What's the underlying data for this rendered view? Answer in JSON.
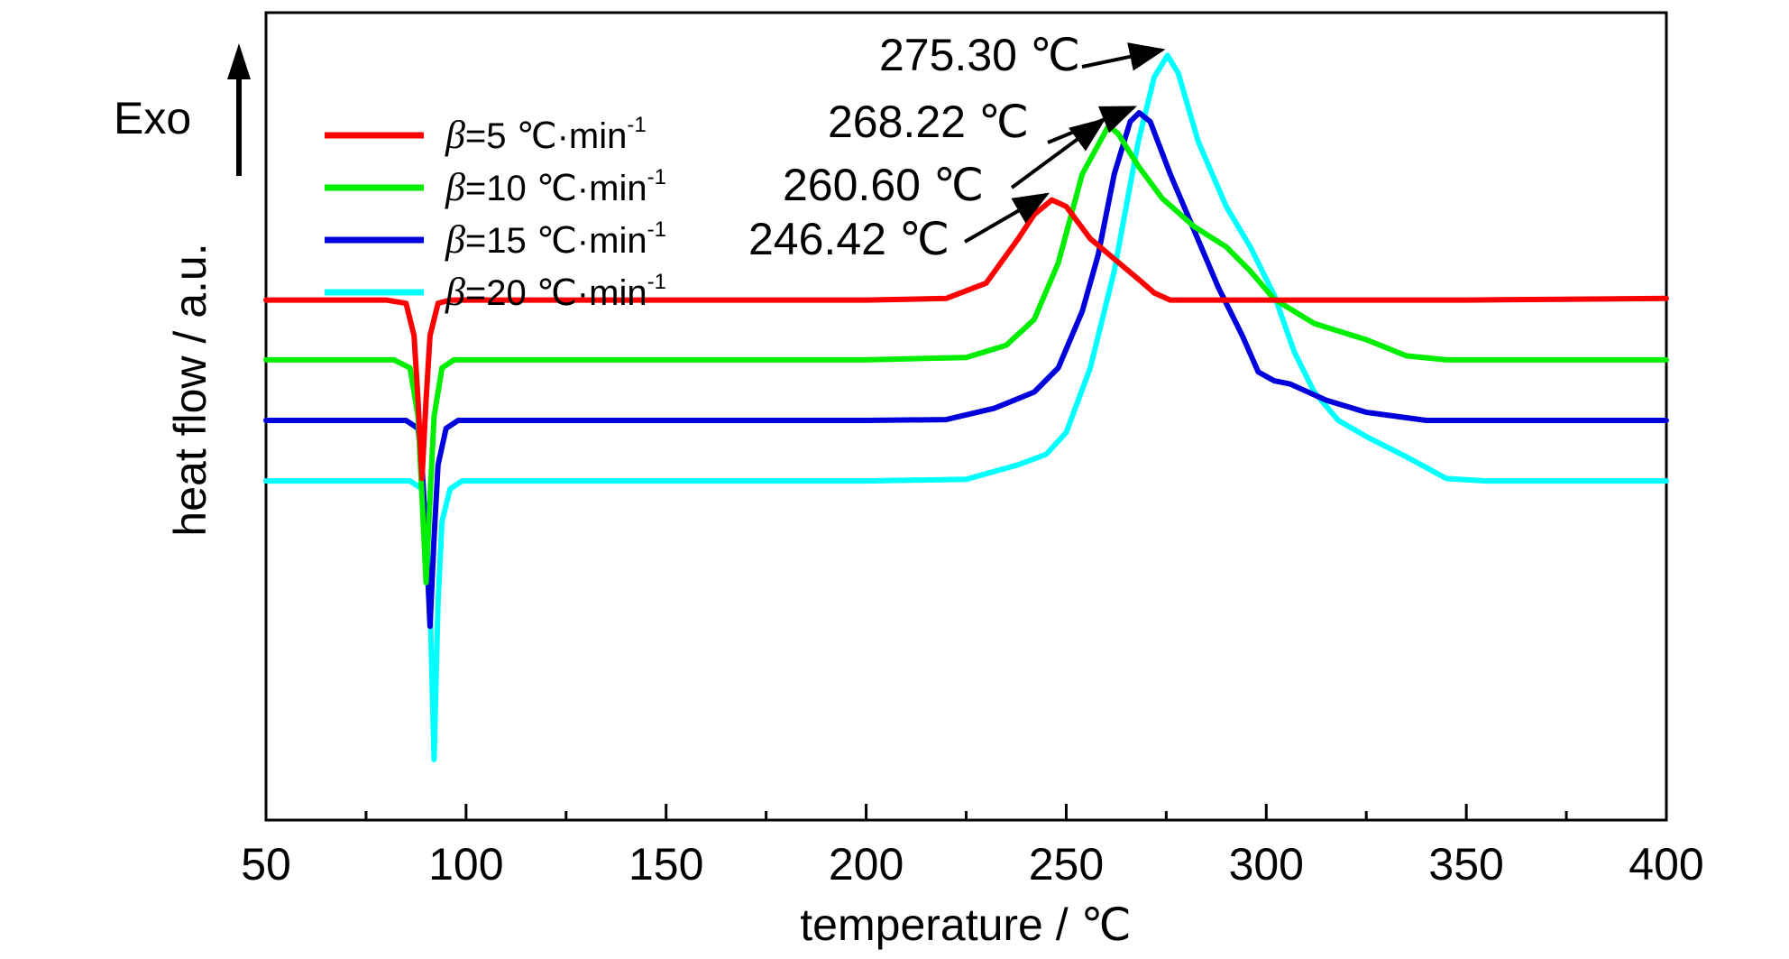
{
  "chart_data": {
    "type": "line",
    "xlabel": "temperature / ℃",
    "ylabel": "heat flow / a.u.",
    "xlim": [
      50,
      400
    ],
    "ylim": [
      0,
      100
    ],
    "xticks": [
      "50",
      "100",
      "150",
      "200",
      "250",
      "300",
      "350",
      "400"
    ],
    "grid": false,
    "legend_position": "top-left",
    "exo_label": "Exo",
    "series": [
      {
        "name": "β=5 ℃·min⁻¹",
        "legend_beta": "β",
        "legend_value": "=5 ℃·min",
        "legend_sup": "-1",
        "color": "#ff0000",
        "points": [
          [
            50,
            64.4
          ],
          [
            80,
            64.4
          ],
          [
            85,
            64.0
          ],
          [
            87,
            60.0
          ],
          [
            88,
            52.0
          ],
          [
            89,
            42.3
          ],
          [
            90,
            52.0
          ],
          [
            91,
            60.0
          ],
          [
            93,
            64.0
          ],
          [
            96,
            64.4
          ],
          [
            200,
            64.4
          ],
          [
            220,
            64.6
          ],
          [
            230,
            66.5
          ],
          [
            238,
            72.0
          ],
          [
            242,
            75.0
          ],
          [
            246.42,
            76.8
          ],
          [
            250,
            76.0
          ],
          [
            256,
            72.0
          ],
          [
            262,
            69.5
          ],
          [
            268,
            67.0
          ],
          [
            272,
            65.3
          ],
          [
            276,
            64.4
          ],
          [
            300,
            64.4
          ],
          [
            350,
            64.4
          ],
          [
            400,
            64.6
          ]
        ]
      },
      {
        "name": "β=10 ℃·min⁻¹",
        "legend_beta": "β",
        "legend_value": "=10 ℃·min",
        "legend_sup": "-1",
        "color": "#00ee00",
        "points": [
          [
            50,
            57.0
          ],
          [
            82,
            57.0
          ],
          [
            86,
            56.0
          ],
          [
            88,
            50.0
          ],
          [
            89,
            40.0
          ],
          [
            90,
            29.4
          ],
          [
            91,
            40.0
          ],
          [
            92,
            50.0
          ],
          [
            94,
            56.0
          ],
          [
            97,
            57.0
          ],
          [
            200,
            57.0
          ],
          [
            225,
            57.3
          ],
          [
            235,
            58.8
          ],
          [
            242,
            62.0
          ],
          [
            248,
            69.0
          ],
          [
            254,
            80.0
          ],
          [
            260.6,
            86.0
          ],
          [
            263,
            85.0
          ],
          [
            268,
            81.0
          ],
          [
            274,
            77.0
          ],
          [
            282,
            73.5
          ],
          [
            290,
            71.0
          ],
          [
            296,
            68.0
          ],
          [
            302,
            64.5
          ],
          [
            312,
            61.5
          ],
          [
            325,
            59.5
          ],
          [
            335,
            57.5
          ],
          [
            345,
            57.0
          ],
          [
            400,
            57.0
          ]
        ]
      },
      {
        "name": "β=15 ℃·min⁻¹",
        "legend_beta": "β",
        "legend_value": "=15 ℃·min",
        "legend_sup": "-1",
        "color": "#0000dd",
        "points": [
          [
            50,
            49.5
          ],
          [
            85,
            49.5
          ],
          [
            88,
            48.5
          ],
          [
            89,
            44.0
          ],
          [
            90,
            35.0
          ],
          [
            91,
            24.0
          ],
          [
            92,
            35.0
          ],
          [
            93,
            44.0
          ],
          [
            95,
            48.5
          ],
          [
            98,
            49.5
          ],
          [
            200,
            49.5
          ],
          [
            220,
            49.6
          ],
          [
            232,
            51.0
          ],
          [
            242,
            53.0
          ],
          [
            248,
            56.0
          ],
          [
            254,
            63.0
          ],
          [
            258,
            70.0
          ],
          [
            262,
            80.0
          ],
          [
            266,
            86.5
          ],
          [
            268.22,
            87.6
          ],
          [
            271,
            86.5
          ],
          [
            276,
            80.0
          ],
          [
            282,
            73.0
          ],
          [
            288,
            66.0
          ],
          [
            294,
            60.0
          ],
          [
            298,
            55.5
          ],
          [
            302,
            54.4
          ],
          [
            306,
            54.0
          ],
          [
            315,
            52.0
          ],
          [
            325,
            50.5
          ],
          [
            340,
            49.5
          ],
          [
            400,
            49.5
          ]
        ]
      },
      {
        "name": "β=20 ℃·min⁻¹",
        "legend_beta": "β",
        "legend_value": "=20 ℃·min",
        "legend_sup": "-1",
        "color": "#00ffff",
        "points": [
          [
            50,
            42.0
          ],
          [
            86,
            42.0
          ],
          [
            89,
            41.0
          ],
          [
            90,
            37.0
          ],
          [
            91,
            27.0
          ],
          [
            92,
            7.5
          ],
          [
            93,
            27.0
          ],
          [
            94,
            37.0
          ],
          [
            96,
            41.0
          ],
          [
            99,
            42.0
          ],
          [
            200,
            42.0
          ],
          [
            225,
            42.2
          ],
          [
            238,
            44.0
          ],
          [
            245,
            45.3
          ],
          [
            250,
            48.0
          ],
          [
            256,
            56.0
          ],
          [
            262,
            68.0
          ],
          [
            268,
            84.0
          ],
          [
            272,
            92.0
          ],
          [
            275.3,
            94.7
          ],
          [
            278,
            92.5
          ],
          [
            283,
            84.0
          ],
          [
            290,
            76.0
          ],
          [
            296,
            71.0
          ],
          [
            302,
            65.0
          ],
          [
            307,
            58.0
          ],
          [
            312,
            53.0
          ],
          [
            318,
            49.5
          ],
          [
            325,
            47.5
          ],
          [
            335,
            45.0
          ],
          [
            345,
            42.3
          ],
          [
            355,
            42.0
          ],
          [
            400,
            42.0
          ]
        ]
      }
    ],
    "annotations": [
      {
        "text": "246.42 ℃",
        "x": 246.42,
        "y": 76.8,
        "color": "#ff0000"
      },
      {
        "text": "260.60 ℃",
        "x": 260.6,
        "y": 86.0,
        "color": "#00ee00"
      },
      {
        "text": "268.22 ℃",
        "x": 268.22,
        "y": 87.6,
        "color": "#0000dd"
      },
      {
        "text": "275.30 ℃",
        "x": 275.3,
        "y": 94.7,
        "color": "#00ffff"
      }
    ]
  }
}
